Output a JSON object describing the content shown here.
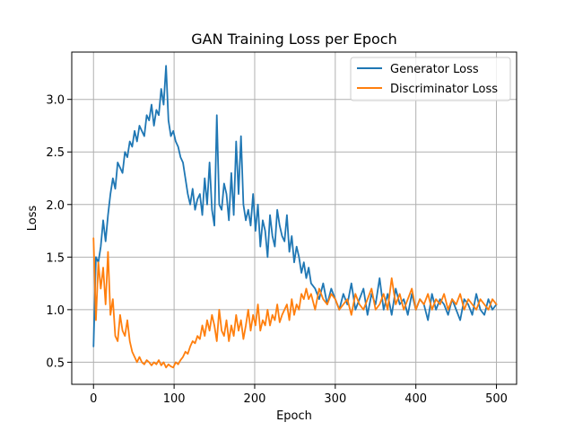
{
  "chart_data": {
    "type": "line",
    "title": "GAN Training Loss per Epoch",
    "xlabel": "Epoch",
    "ylabel": "Loss",
    "xlim": [
      -27,
      525
    ],
    "ylim": [
      0.29,
      3.45
    ],
    "xticks": [
      0,
      100,
      200,
      300,
      400,
      500
    ],
    "yticks": [
      0.5,
      1.0,
      1.5,
      2.0,
      2.5,
      3.0
    ],
    "ytick_labels": [
      "0.5",
      "1.0",
      "1.5",
      "2.0",
      "2.5",
      "3.0"
    ],
    "grid": true,
    "legend_position": "top-right",
    "series": [
      {
        "name": "Generator Loss",
        "color": "#1f77b4",
        "x": [
          0,
          3,
          6,
          9,
          12,
          15,
          18,
          21,
          24,
          27,
          30,
          33,
          36,
          39,
          42,
          45,
          48,
          51,
          54,
          57,
          60,
          63,
          66,
          69,
          72,
          75,
          78,
          81,
          84,
          87,
          90,
          93,
          96,
          99,
          102,
          105,
          108,
          111,
          114,
          117,
          120,
          123,
          126,
          129,
          132,
          135,
          138,
          141,
          144,
          147,
          150,
          153,
          156,
          159,
          162,
          165,
          168,
          171,
          174,
          177,
          180,
          183,
          186,
          189,
          192,
          195,
          198,
          201,
          204,
          207,
          210,
          213,
          216,
          219,
          222,
          225,
          228,
          231,
          234,
          237,
          240,
          243,
          246,
          249,
          252,
          255,
          258,
          261,
          264,
          267,
          270,
          275,
          280,
          285,
          290,
          295,
          300,
          305,
          310,
          315,
          320,
          325,
          330,
          335,
          340,
          345,
          350,
          355,
          360,
          365,
          370,
          375,
          380,
          385,
          390,
          395,
          400,
          405,
          410,
          415,
          420,
          425,
          430,
          435,
          440,
          445,
          450,
          455,
          460,
          465,
          470,
          475,
          480,
          485,
          490,
          495,
          500
        ],
        "values": [
          0.65,
          1.5,
          1.45,
          1.6,
          1.85,
          1.65,
          1.9,
          2.1,
          2.25,
          2.15,
          2.4,
          2.35,
          2.3,
          2.5,
          2.45,
          2.6,
          2.55,
          2.7,
          2.6,
          2.75,
          2.7,
          2.65,
          2.85,
          2.8,
          2.95,
          2.75,
          2.9,
          2.85,
          3.1,
          2.95,
          3.32,
          2.8,
          2.65,
          2.7,
          2.6,
          2.55,
          2.45,
          2.4,
          2.25,
          2.1,
          2.0,
          2.15,
          1.95,
          2.05,
          2.1,
          1.9,
          2.25,
          2.0,
          2.4,
          1.95,
          1.8,
          2.85,
          2.0,
          1.95,
          2.2,
          2.1,
          1.85,
          2.3,
          1.9,
          2.6,
          2.1,
          2.65,
          2.0,
          1.85,
          1.95,
          1.8,
          2.1,
          1.75,
          2.0,
          1.6,
          1.85,
          1.75,
          1.5,
          1.9,
          1.7,
          1.6,
          1.95,
          1.8,
          1.7,
          1.65,
          1.9,
          1.55,
          1.7,
          1.45,
          1.6,
          1.5,
          1.35,
          1.45,
          1.3,
          1.4,
          1.25,
          1.2,
          1.1,
          1.25,
          1.05,
          1.2,
          1.1,
          1.0,
          1.15,
          1.05,
          1.25,
          1.0,
          1.1,
          1.2,
          0.95,
          1.15,
          1.05,
          1.3,
          1.0,
          1.15,
          0.95,
          1.2,
          1.05,
          1.1,
          0.95,
          1.15,
          1.0,
          1.1,
          1.05,
          0.9,
          1.15,
          1.0,
          1.1,
          1.05,
          0.95,
          1.1,
          1.0,
          0.9,
          1.1,
          1.05,
          0.95,
          1.15,
          1.0,
          0.95,
          1.1,
          1.0,
          1.05
        ]
      },
      {
        "name": "Discriminator Loss",
        "color": "#ff7f0e",
        "x": [
          0,
          3,
          6,
          9,
          12,
          15,
          18,
          21,
          24,
          27,
          30,
          33,
          36,
          39,
          42,
          45,
          48,
          51,
          54,
          57,
          60,
          63,
          66,
          69,
          72,
          75,
          78,
          81,
          84,
          87,
          90,
          93,
          96,
          99,
          102,
          105,
          108,
          111,
          114,
          117,
          120,
          123,
          126,
          129,
          132,
          135,
          138,
          141,
          144,
          147,
          150,
          153,
          156,
          159,
          162,
          165,
          168,
          171,
          174,
          177,
          180,
          183,
          186,
          189,
          192,
          195,
          198,
          201,
          204,
          207,
          210,
          213,
          216,
          219,
          222,
          225,
          228,
          231,
          234,
          237,
          240,
          243,
          246,
          249,
          252,
          255,
          258,
          261,
          264,
          267,
          270,
          275,
          280,
          285,
          290,
          295,
          300,
          305,
          310,
          315,
          320,
          325,
          330,
          335,
          340,
          345,
          350,
          355,
          360,
          365,
          370,
          375,
          380,
          385,
          390,
          395,
          400,
          405,
          410,
          415,
          420,
          425,
          430,
          435,
          440,
          445,
          450,
          455,
          460,
          465,
          470,
          475,
          480,
          485,
          490,
          495,
          500
        ],
        "values": [
          1.68,
          0.9,
          1.45,
          1.2,
          1.4,
          1.05,
          1.55,
          0.95,
          1.1,
          0.75,
          0.7,
          0.95,
          0.8,
          0.75,
          0.9,
          0.7,
          0.6,
          0.55,
          0.5,
          0.55,
          0.5,
          0.48,
          0.52,
          0.5,
          0.47,
          0.5,
          0.48,
          0.52,
          0.47,
          0.5,
          0.45,
          0.48,
          0.46,
          0.45,
          0.5,
          0.48,
          0.52,
          0.55,
          0.6,
          0.58,
          0.65,
          0.7,
          0.68,
          0.75,
          0.72,
          0.85,
          0.75,
          0.9,
          0.8,
          0.95,
          0.85,
          0.7,
          1.0,
          0.8,
          0.75,
          0.9,
          0.7,
          0.85,
          0.75,
          0.95,
          0.8,
          0.9,
          0.72,
          0.85,
          1.0,
          0.8,
          0.95,
          0.85,
          1.05,
          0.8,
          0.9,
          0.85,
          1.0,
          0.85,
          0.95,
          0.9,
          1.05,
          0.88,
          0.95,
          1.0,
          1.05,
          0.9,
          1.1,
          0.95,
          1.05,
          1.0,
          1.15,
          1.1,
          1.2,
          1.1,
          1.15,
          1.0,
          1.2,
          1.1,
          1.05,
          1.15,
          1.1,
          1.0,
          1.05,
          1.1,
          0.95,
          1.15,
          1.05,
          1.0,
          1.1,
          1.2,
          1.0,
          1.05,
          1.15,
          1.0,
          1.3,
          1.05,
          1.15,
          1.0,
          1.1,
          1.2,
          1.0,
          1.1,
          1.05,
          1.15,
          1.0,
          1.1,
          1.05,
          1.15,
          1.0,
          1.1,
          1.05,
          1.15,
          1.0,
          1.1,
          1.05,
          1.0,
          1.1,
          1.05,
          1.0,
          1.1,
          1.05
        ]
      }
    ]
  }
}
